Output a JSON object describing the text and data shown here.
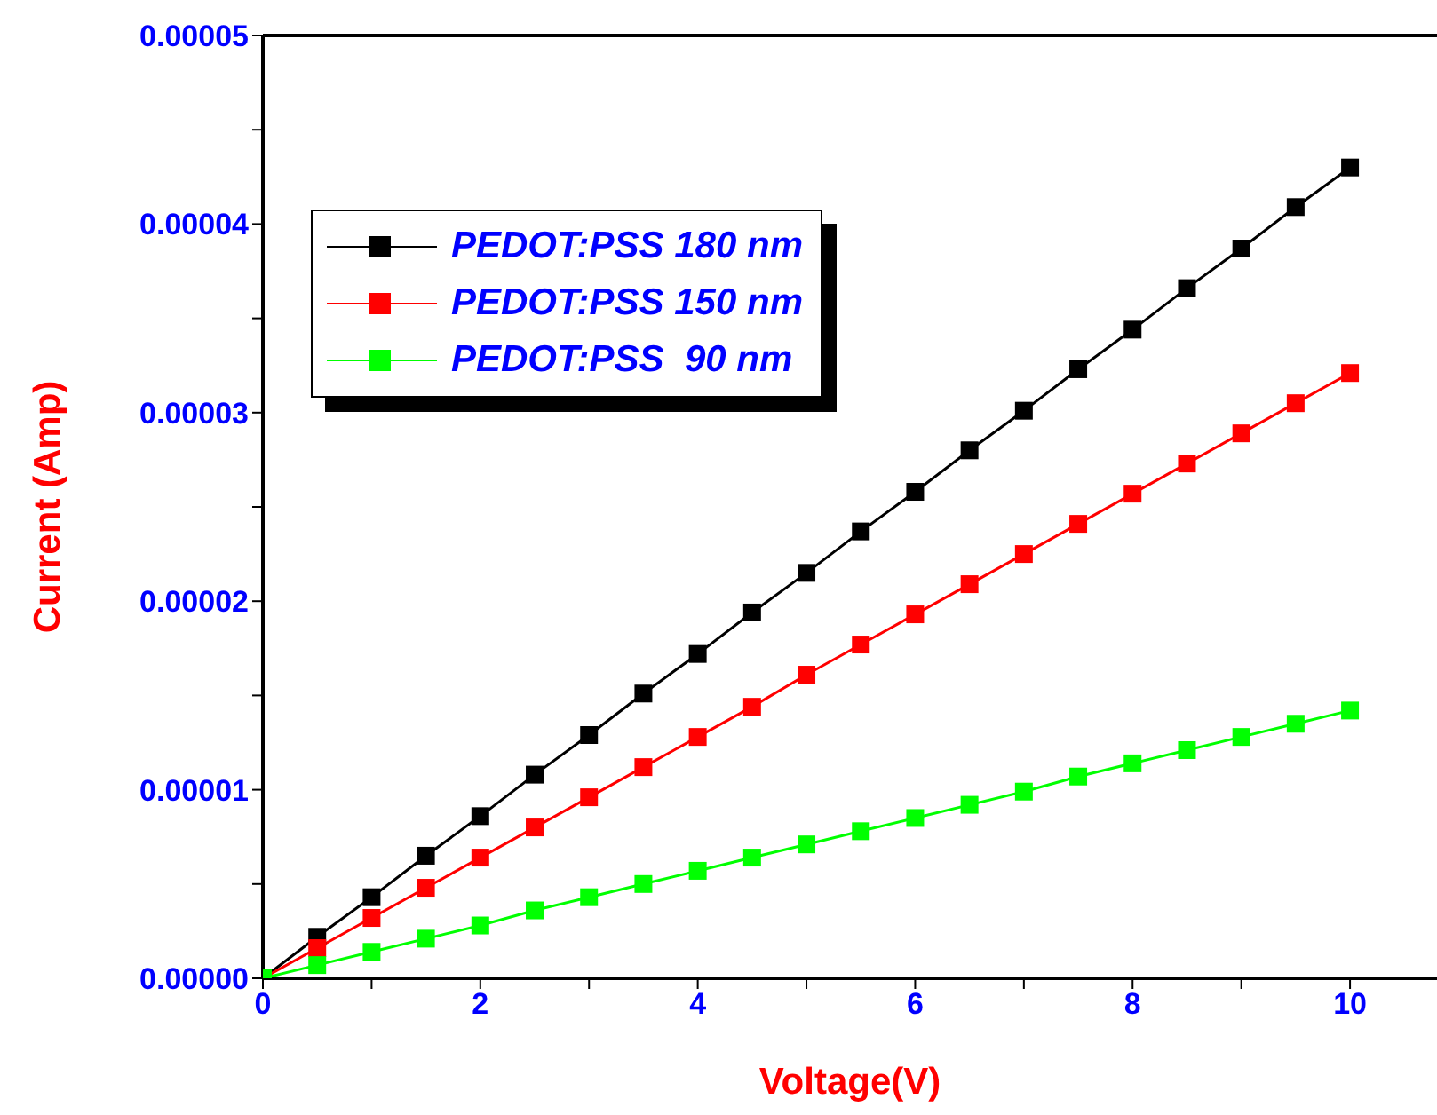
{
  "chart_data": {
    "type": "line",
    "xlabel": "Voltage(V)",
    "ylabel": "Current (Amp)",
    "x": [
      0,
      0.5,
      1,
      1.5,
      2,
      2.5,
      3,
      3.5,
      4,
      4.5,
      5,
      5.5,
      6,
      6.5,
      7,
      7.5,
      8,
      8.5,
      9,
      9.5,
      10
    ],
    "series": [
      {
        "name": "PEDOT:PSS 180 nm",
        "color": "#000000",
        "values": [
          0,
          2.2e-06,
          4.3e-06,
          6.5e-06,
          8.6e-06,
          1.08e-05,
          1.29e-05,
          1.51e-05,
          1.72e-05,
          1.94e-05,
          2.15e-05,
          2.37e-05,
          2.58e-05,
          2.8e-05,
          3.01e-05,
          3.23e-05,
          3.44e-05,
          3.66e-05,
          3.87e-05,
          4.09e-05,
          4.3e-05
        ]
      },
      {
        "name": "PEDOT:PSS 150 nm",
        "color": "#ff0000",
        "values": [
          0,
          1.6e-06,
          3.2e-06,
          4.8e-06,
          6.4e-06,
          8e-06,
          9.6e-06,
          1.12e-05,
          1.28e-05,
          1.44e-05,
          1.61e-05,
          1.77e-05,
          1.93e-05,
          2.09e-05,
          2.25e-05,
          2.41e-05,
          2.57e-05,
          2.73e-05,
          2.89e-05,
          3.05e-05,
          3.21e-05
        ]
      },
      {
        "name": "PEDOT:PSS  90 nm",
        "color": "#00ff00",
        "values": [
          0,
          7e-07,
          1.4e-06,
          2.1e-06,
          2.8e-06,
          3.6e-06,
          4.3e-06,
          5e-06,
          5.7e-06,
          6.4e-06,
          7.1e-06,
          7.8e-06,
          8.5e-06,
          9.2e-06,
          9.9e-06,
          1.07e-05,
          1.14e-05,
          1.21e-05,
          1.28e-05,
          1.35e-05,
          1.42e-05
        ]
      }
    ],
    "xlim": [
      0,
      10.8
    ],
    "xticks": [
      0,
      {
        "value": 1,
        "label": null
      },
      2,
      {
        "value": 3,
        "label": null
      },
      4,
      {
        "value": 5,
        "label": null
      },
      6,
      {
        "value": 7,
        "label": null
      },
      8,
      {
        "value": 9,
        "label": null
      },
      10
    ],
    "ylim": [
      0,
      5e-05
    ],
    "yticks": [
      {
        "value": 0,
        "label": "0.00000"
      },
      {
        "value": 5e-06,
        "label": null
      },
      {
        "value": 1e-05,
        "label": "0.00001"
      },
      {
        "value": 1.5e-05,
        "label": null
      },
      {
        "value": 2e-05,
        "label": "0.00002"
      },
      {
        "value": 2.5e-05,
        "label": null
      },
      {
        "value": 3e-05,
        "label": "0.00003"
      },
      {
        "value": 3.5e-05,
        "label": null
      },
      {
        "value": 4e-05,
        "label": "0.00004"
      },
      {
        "value": 4.5e-05,
        "label": null
      },
      {
        "value": 5e-05,
        "label": "0.00005"
      }
    ],
    "marker": "square",
    "legend": "top left",
    "grid": false
  }
}
